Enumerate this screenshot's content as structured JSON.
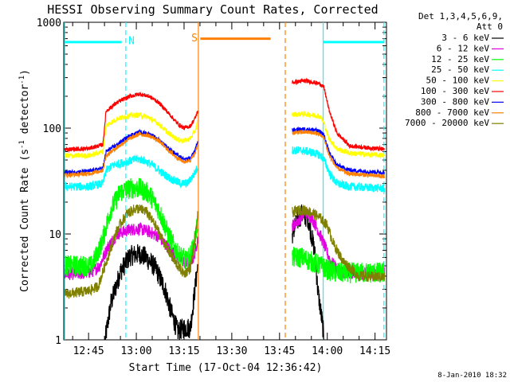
{
  "chart_data": {
    "type": "line",
    "title": "HESSI Observing Summary Count Rates, Corrected",
    "xlabel": "Start Time (17-Oct-04 12:36:42)",
    "ylabel": "Corrected Count Rate (s",
    "ylabel_sup1": "-1",
    "ylabel_mid": " detector",
    "ylabel_sup2": "-1",
    "ylabel_end": ")",
    "y_scale": "log",
    "ylim": [
      1,
      1000
    ],
    "yticks": [
      {
        "v": 1,
        "label": "1"
      },
      {
        "v": 10,
        "label": "10"
      },
      {
        "v": 100,
        "label": "100"
      },
      {
        "v": 1000,
        "label": "1000"
      }
    ],
    "xlim_minutes": [
      757.2,
      858.6
    ],
    "xticks": [
      {
        "v": 765,
        "label": "12:45"
      },
      {
        "v": 780,
        "label": "13:00"
      },
      {
        "v": 795,
        "label": "13:15"
      },
      {
        "v": 810,
        "label": "13:30"
      },
      {
        "v": 825,
        "label": "13:45"
      },
      {
        "v": 840,
        "label": "14:00"
      },
      {
        "v": 855,
        "label": "14:15"
      }
    ],
    "legend_header": [
      "Det 1,3,4,5,6,9,",
      "Att 0"
    ],
    "legend_position": "right",
    "series": [
      {
        "name": "3 - 6 keV",
        "color": "#000000",
        "noise": 0.1,
        "points": [
          [
            770.2,
            1
          ],
          [
            772,
            2.2
          ],
          [
            775,
            4.4
          ],
          [
            778,
            6.2
          ],
          [
            781,
            6.5
          ],
          [
            783,
            6
          ],
          [
            786,
            4.8
          ],
          [
            789,
            3
          ],
          [
            791,
            1.8
          ],
          [
            793,
            1.2
          ],
          [
            795,
            1.3
          ],
          [
            797,
            1.3
          ],
          [
            798.4,
            3
          ],
          [
            799.3,
            5
          ],
          [
            829,
            10
          ],
          [
            830.5,
            13
          ],
          [
            832,
            15.5
          ],
          [
            834,
            14
          ],
          [
            836,
            7
          ],
          [
            837,
            3
          ],
          [
            838.5,
            1.4
          ],
          [
            839,
            1
          ]
        ]
      },
      {
        "name": "6 - 12 keV",
        "color": "#e000e0",
        "noise": 0.06,
        "points": [
          [
            757.5,
            4.2
          ],
          [
            762,
            4.2
          ],
          [
            766,
            4.4
          ],
          [
            768.5,
            5
          ],
          [
            771,
            7.5
          ],
          [
            774,
            10
          ],
          [
            778,
            11
          ],
          [
            781,
            11.2
          ],
          [
            784,
            10.5
          ],
          [
            787,
            9.5
          ],
          [
            790,
            7.5
          ],
          [
            793,
            6
          ],
          [
            796,
            5.2
          ],
          [
            798,
            6
          ],
          [
            799.3,
            9
          ],
          [
            829,
            12
          ],
          [
            831,
            13.5
          ],
          [
            833,
            16
          ],
          [
            835,
            14.5
          ],
          [
            837,
            11
          ],
          [
            839,
            8
          ],
          [
            841,
            5.5
          ],
          [
            844,
            4.4
          ],
          [
            848,
            4.3
          ],
          [
            858,
            4.3
          ]
        ]
      },
      {
        "name": "12 - 25 keV",
        "color": "#00ff00",
        "noise": 0.1,
        "points": [
          [
            757.5,
            5
          ],
          [
            766,
            5
          ],
          [
            769,
            8
          ],
          [
            772,
            17
          ],
          [
            775,
            25
          ],
          [
            778,
            27
          ],
          [
            781,
            27
          ],
          [
            784,
            24
          ],
          [
            787,
            17
          ],
          [
            790,
            10
          ],
          [
            793,
            6.5
          ],
          [
            796,
            5.5
          ],
          [
            798,
            7.5
          ],
          [
            799.3,
            13
          ],
          [
            829,
            6
          ],
          [
            832,
            6
          ],
          [
            835,
            5.5
          ],
          [
            838,
            5
          ],
          [
            840,
            4.6
          ],
          [
            843,
            4.3
          ],
          [
            858,
            4.3
          ]
        ]
      },
      {
        "name": "25 - 50 keV",
        "color": "#00ffff",
        "noise": 0.04,
        "points": [
          [
            757.5,
            28
          ],
          [
            765,
            28
          ],
          [
            769.5,
            30
          ],
          [
            770.5,
            40
          ],
          [
            773,
            45
          ],
          [
            777,
            48
          ],
          [
            780,
            51
          ],
          [
            782,
            50
          ],
          [
            785,
            45
          ],
          [
            788,
            38
          ],
          [
            791,
            33
          ],
          [
            794,
            30
          ],
          [
            796,
            30
          ],
          [
            798,
            36
          ],
          [
            799.3,
            43
          ],
          [
            829,
            62
          ],
          [
            833,
            61
          ],
          [
            836,
            58
          ],
          [
            838,
            55
          ],
          [
            839,
            50
          ],
          [
            841,
            36
          ],
          [
            843,
            30
          ],
          [
            847,
            28
          ],
          [
            858,
            27
          ]
        ]
      },
      {
        "name": "50 - 100 keV",
        "color": "#ffff00",
        "noise": 0.025,
        "points": [
          [
            757.5,
            55
          ],
          [
            765,
            55
          ],
          [
            769.5,
            60
          ],
          [
            770.5,
            105
          ],
          [
            774,
            123
          ],
          [
            778,
            132
          ],
          [
            781,
            133
          ],
          [
            784,
            126
          ],
          [
            787,
            110
          ],
          [
            790,
            90
          ],
          [
            793,
            78
          ],
          [
            795,
            76
          ],
          [
            797,
            80
          ],
          [
            798.5,
            95
          ],
          [
            799.3,
            115
          ],
          [
            829,
            135
          ],
          [
            833,
            136
          ],
          [
            836,
            132
          ],
          [
            838,
            128
          ],
          [
            839,
            110
          ],
          [
            840.5,
            80
          ],
          [
            843,
            64
          ],
          [
            847,
            58
          ],
          [
            858,
            55
          ]
        ]
      },
      {
        "name": "100 - 300 keV",
        "color": "#ff0000",
        "noise": 0.02,
        "points": [
          [
            757.5,
            63
          ],
          [
            765,
            64
          ],
          [
            769.5,
            70
          ],
          [
            770.5,
            145
          ],
          [
            774,
            175
          ],
          [
            778,
            200
          ],
          [
            781,
            210
          ],
          [
            784,
            200
          ],
          [
            787,
            175
          ],
          [
            790,
            140
          ],
          [
            793,
            110
          ],
          [
            795,
            100
          ],
          [
            797,
            105
          ],
          [
            798.5,
            125
          ],
          [
            799.3,
            145
          ],
          [
            829,
            270
          ],
          [
            833,
            280
          ],
          [
            836,
            270
          ],
          [
            838,
            260
          ],
          [
            839,
            240
          ],
          [
            840.5,
            150
          ],
          [
            843,
            90
          ],
          [
            847,
            68
          ],
          [
            858,
            63
          ]
        ]
      },
      {
        "name": "300 - 800 keV",
        "color": "#0000ff",
        "noise": 0.02,
        "points": [
          [
            757.5,
            38
          ],
          [
            765,
            39
          ],
          [
            769.5,
            42
          ],
          [
            770.5,
            60
          ],
          [
            774,
            70
          ],
          [
            778,
            85
          ],
          [
            781,
            92
          ],
          [
            784,
            88
          ],
          [
            787,
            78
          ],
          [
            790,
            65
          ],
          [
            793,
            55
          ],
          [
            795,
            50
          ],
          [
            797,
            52
          ],
          [
            798.5,
            62
          ],
          [
            799.3,
            75
          ],
          [
            829,
            96
          ],
          [
            833,
            98
          ],
          [
            836,
            96
          ],
          [
            838,
            92
          ],
          [
            839,
            85
          ],
          [
            840.5,
            60
          ],
          [
            843,
            45
          ],
          [
            847,
            40
          ],
          [
            858,
            38
          ]
        ]
      },
      {
        "name": "800 - 7000 keV",
        "color": "#ff8000",
        "noise": 0.02,
        "points": [
          [
            757.5,
            36
          ],
          [
            765,
            37
          ],
          [
            769.5,
            40
          ],
          [
            770.5,
            55
          ],
          [
            774,
            66
          ],
          [
            778,
            80
          ],
          [
            781,
            88
          ],
          [
            784,
            85
          ],
          [
            787,
            76
          ],
          [
            790,
            62
          ],
          [
            793,
            52
          ],
          [
            795,
            48
          ],
          [
            797,
            50
          ],
          [
            798.5,
            58
          ],
          [
            799.3,
            70
          ],
          [
            829,
            90
          ],
          [
            833,
            92
          ],
          [
            836,
            90
          ],
          [
            838,
            86
          ],
          [
            839,
            80
          ],
          [
            840.5,
            56
          ],
          [
            843,
            42
          ],
          [
            847,
            37
          ],
          [
            858,
            35
          ]
        ]
      },
      {
        "name": "7000 - 20000 keV",
        "color": "#808000",
        "noise": 0.05,
        "points": [
          [
            757.5,
            2.7
          ],
          [
            765,
            2.9
          ],
          [
            768,
            3.2
          ],
          [
            771,
            6
          ],
          [
            774,
            11
          ],
          [
            777,
            15.5
          ],
          [
            780,
            17.5
          ],
          [
            783,
            16.5
          ],
          [
            786,
            12
          ],
          [
            789,
            8
          ],
          [
            792,
            5.5
          ],
          [
            795,
            4.2
          ],
          [
            797,
            4.8
          ],
          [
            798.5,
            9
          ],
          [
            799.3,
            15
          ],
          [
            829,
            16
          ],
          [
            832,
            17
          ],
          [
            835,
            16
          ],
          [
            838,
            14
          ],
          [
            840,
            12
          ],
          [
            842,
            8
          ],
          [
            845,
            5.5
          ],
          [
            850,
            4
          ],
          [
            858,
            3.9
          ]
        ]
      }
    ],
    "vertical_markers": [
      {
        "x": 757.5,
        "color": "#00ffff",
        "style": "solid"
      },
      {
        "x": 776.7,
        "color": "#00ffff",
        "style": "dashed"
      },
      {
        "x": 799.5,
        "color": "#ff8000",
        "style": "solid"
      },
      {
        "x": 826.8,
        "color": "#ff8000",
        "style": "dashed"
      },
      {
        "x": 838.7,
        "color": "#00ffff",
        "style": "solid"
      },
      {
        "x": 857.8,
        "color": "#00ffff",
        "style": "dashed"
      }
    ],
    "bars": [
      {
        "x0": 757.5,
        "x1": 775.4,
        "y": 650,
        "color": "#00ffff"
      },
      {
        "x0": 838.7,
        "x1": 857.8,
        "y": 650,
        "color": "#00ffff"
      },
      {
        "x0": 800.1,
        "x1": 822.2,
        "y": 700,
        "color": "#ff8000"
      }
    ],
    "annotations": [
      {
        "text": "N",
        "x": 777.5,
        "y": 680,
        "color": "#00ffff"
      },
      {
        "text": "S",
        "x": 797.3,
        "y": 720,
        "color": "#ff8000"
      }
    ]
  },
  "footer": "8-Jan-2010 18:32"
}
